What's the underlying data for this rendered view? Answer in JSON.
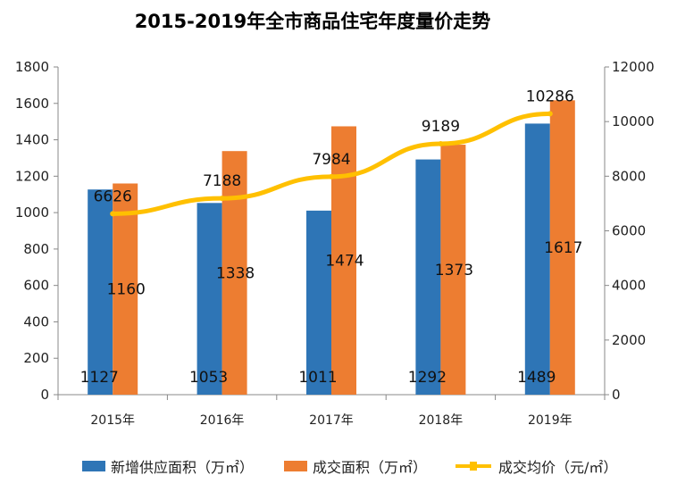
{
  "chart_data": {
    "type": "bar",
    "title": "2015-2019年全市商品住宅年度量价走势",
    "categories": [
      "2015年",
      "2016年",
      "2017年",
      "2018年",
      "2019年"
    ],
    "series": [
      {
        "name": "新增供应面积（万㎡）",
        "type": "bar",
        "axis": "left",
        "color": "#2e75b6",
        "values": [
          1127,
          1053,
          1011,
          1292,
          1489
        ]
      },
      {
        "name": "成交面积（万㎡）",
        "type": "bar",
        "axis": "left",
        "color": "#ed7d31",
        "values": [
          1160,
          1338,
          1474,
          1373,
          1617
        ]
      },
      {
        "name": "成交均价（元/㎡）",
        "type": "line",
        "axis": "right",
        "color": "#ffc000",
        "values": [
          6626,
          7188,
          7984,
          9189,
          10286
        ]
      }
    ],
    "y_left": {
      "min": 0,
      "max": 1800,
      "ticks": [
        0,
        200,
        400,
        600,
        800,
        1000,
        1200,
        1400,
        1600,
        1800
      ]
    },
    "y_right": {
      "min": 0,
      "max": 12000,
      "ticks": [
        0,
        2000,
        4000,
        6000,
        8000,
        10000,
        12000
      ]
    },
    "grid": false,
    "legend_position": "bottom"
  }
}
